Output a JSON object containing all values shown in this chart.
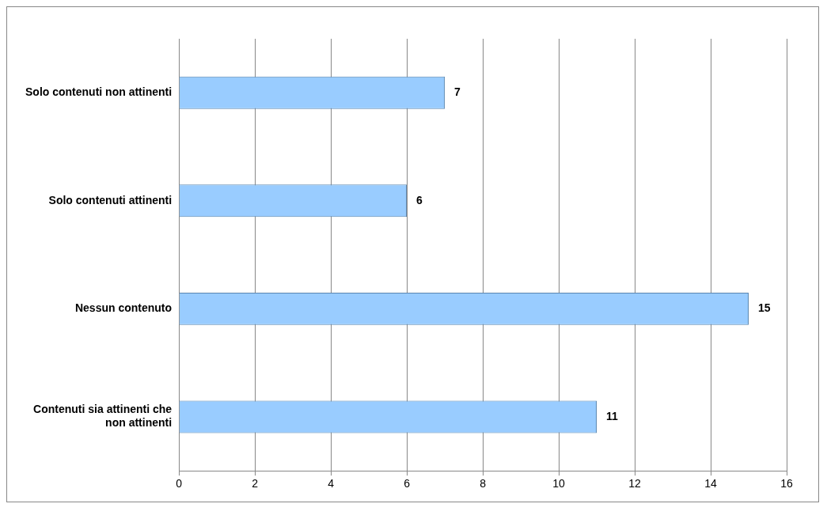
{
  "chart_data": {
    "type": "bar",
    "orientation": "horizontal",
    "categories": [
      "Solo contenuti non attinenti",
      "Solo contenuti attinenti",
      "Nessun contenuto",
      "Contenuti sia attinenti che non attinenti"
    ],
    "values": [
      7,
      6,
      15,
      11
    ],
    "color": "#99ccff",
    "xlim": [
      0,
      16
    ],
    "xticks": [
      0,
      2,
      4,
      6,
      8,
      10,
      12,
      14,
      16
    ],
    "grid": "x",
    "legend": false,
    "data_labels": true
  }
}
